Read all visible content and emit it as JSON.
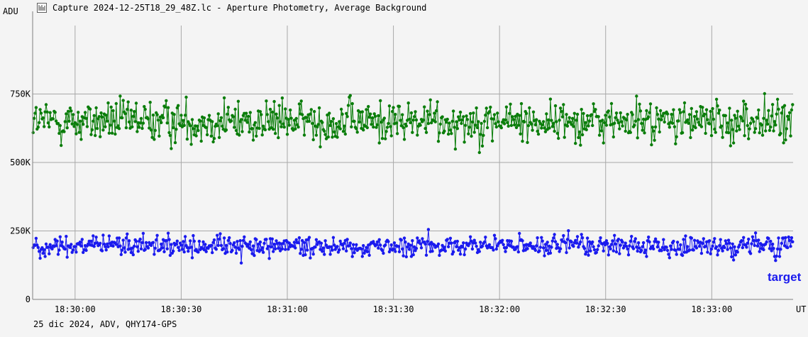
{
  "window": {
    "title": "Capture 2024-12-25T18_29_48Z.lc - Aperture Photometry, Average Background",
    "icon": "lightcurve-icon"
  },
  "footer": {
    "info": "25 dic 2024, ADV, QHY174-GPS"
  },
  "colors": {
    "background": "#f4f4f4",
    "grid": "#a8a8a8",
    "axis": "#808080",
    "comparison": "#0a7d0a",
    "target": "#1a1aee"
  },
  "chart_data": {
    "type": "line",
    "xlabel": "UT",
    "ylabel": "ADU",
    "x_range": [
      "18:29:48",
      "18:33:23"
    ],
    "ylim": [
      0,
      1000000
    ],
    "x_ticks": [
      "18:30:00",
      "18:30:30",
      "18:31:00",
      "18:31:30",
      "18:32:00",
      "18:32:30",
      "18:33:00"
    ],
    "y_ticks": [
      {
        "value": 0,
        "label": "0"
      },
      {
        "value": 250000,
        "label": "250K"
      },
      {
        "value": 500000,
        "label": "500K"
      },
      {
        "value": 750000,
        "label": "750K"
      }
    ],
    "grid": true,
    "series": [
      {
        "color": "#0a7d0a",
        "approx_mean": 650000,
        "approx_min": 500000,
        "approx_max": 850000
      },
      {
        "name": "target",
        "color": "#1a1aee",
        "approx_mean": 195000,
        "approx_min": 110000,
        "approx_max": 285000
      }
    ],
    "annotations": [
      {
        "text": "target",
        "color": "#1a1aee",
        "placement": "bottom-right"
      }
    ]
  }
}
